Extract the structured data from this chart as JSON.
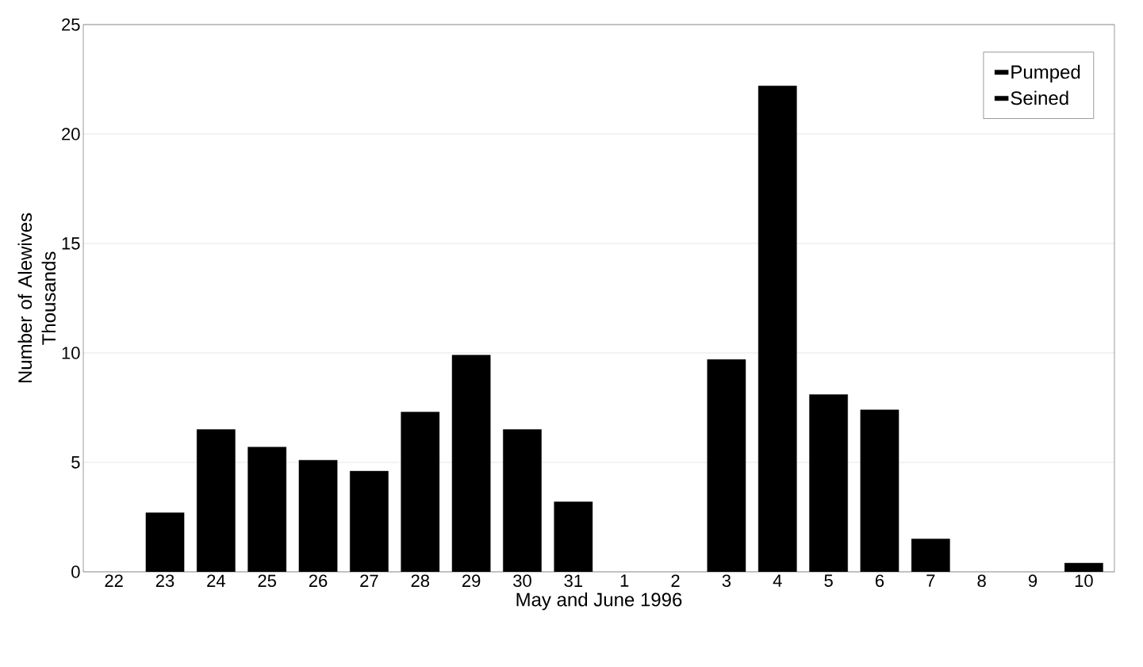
{
  "chart_data": {
    "type": "bar",
    "stacked": true,
    "xlabel": "May and June 1996",
    "ylabel": "Number of Alewives Thousands",
    "categories": [
      "22",
      "23",
      "24",
      "25",
      "26",
      "27",
      "28",
      "29",
      "30",
      "31",
      "1",
      "2",
      "3",
      "4",
      "5",
      "6",
      "7",
      "8",
      "9",
      "10"
    ],
    "series": [
      {
        "name": "Pumped",
        "color": "#000000",
        "values": [
          0,
          2.7,
          6.5,
          5.7,
          5.1,
          4.6,
          7.3,
          9.9,
          6.5,
          3.2,
          0,
          0,
          9.7,
          22.2,
          8.1,
          7.4,
          1.5,
          0,
          0,
          0.4
        ]
      },
      {
        "name": "Seined",
        "color": "#000000",
        "values": [
          null,
          null,
          null,
          null,
          null,
          null,
          null,
          null,
          null,
          null,
          null,
          null,
          null,
          null,
          null,
          null,
          null,
          null,
          null,
          null
        ]
      }
    ],
    "ylim": [
      0,
      25
    ],
    "yticks": [
      0,
      5,
      10,
      15,
      20,
      25
    ],
    "grid": "y",
    "legend": "top right"
  }
}
